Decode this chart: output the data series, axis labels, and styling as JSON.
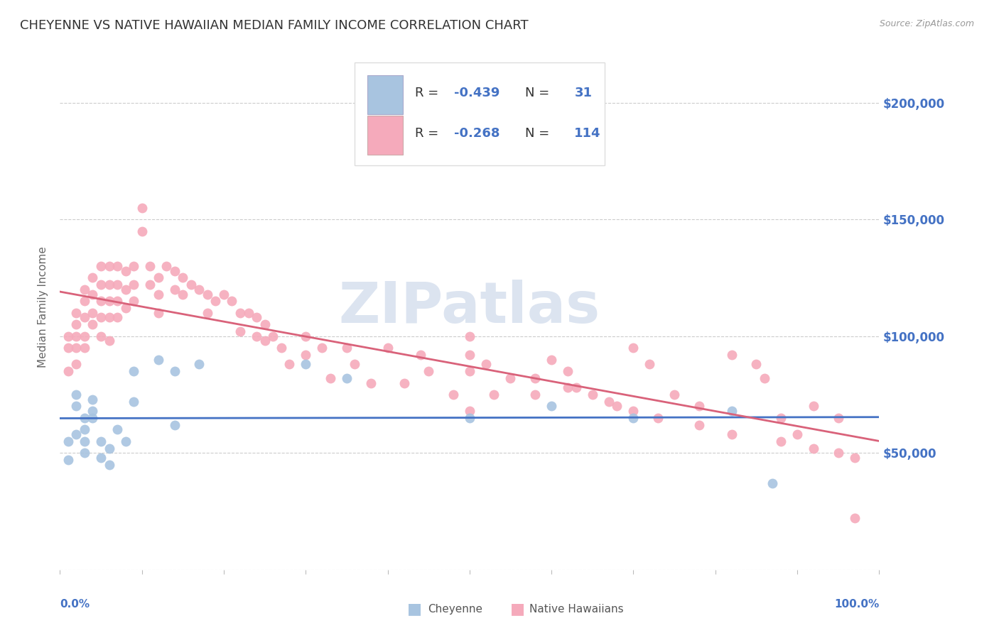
{
  "title": "CHEYENNE VS NATIVE HAWAIIAN MEDIAN FAMILY INCOME CORRELATION CHART",
  "source": "Source: ZipAtlas.com",
  "ylabel": "Median Family Income",
  "yticks": [
    0,
    50000,
    100000,
    150000,
    200000
  ],
  "ytick_labels": [
    "",
    "$50,000",
    "$100,000",
    "$150,000",
    "$200,000"
  ],
  "ylim": [
    0,
    225000
  ],
  "xlim": [
    0.0,
    1.0
  ],
  "watermark": "ZIPatlas",
  "cheyenne_color": "#a8c4e0",
  "cheyenne_line_color": "#4472c4",
  "hawaiian_color": "#f5aabb",
  "hawaiian_line_color": "#d9627a",
  "cheyenne_R": -0.439,
  "cheyenne_N": 31,
  "hawaiian_R": -0.268,
  "hawaiian_N": 114,
  "cheyenne_x": [
    0.01,
    0.01,
    0.02,
    0.02,
    0.02,
    0.03,
    0.03,
    0.03,
    0.03,
    0.04,
    0.04,
    0.04,
    0.05,
    0.05,
    0.06,
    0.06,
    0.07,
    0.08,
    0.09,
    0.09,
    0.12,
    0.14,
    0.14,
    0.17,
    0.3,
    0.35,
    0.5,
    0.6,
    0.7,
    0.82,
    0.87
  ],
  "cheyenne_y": [
    47000,
    55000,
    75000,
    70000,
    58000,
    65000,
    60000,
    55000,
    50000,
    68000,
    73000,
    65000,
    55000,
    48000,
    45000,
    52000,
    60000,
    55000,
    85000,
    72000,
    90000,
    85000,
    62000,
    88000,
    88000,
    82000,
    65000,
    70000,
    65000,
    68000,
    37000
  ],
  "hawaiian_x": [
    0.01,
    0.01,
    0.01,
    0.02,
    0.02,
    0.02,
    0.02,
    0.02,
    0.03,
    0.03,
    0.03,
    0.03,
    0.03,
    0.04,
    0.04,
    0.04,
    0.04,
    0.05,
    0.05,
    0.05,
    0.05,
    0.05,
    0.06,
    0.06,
    0.06,
    0.06,
    0.06,
    0.07,
    0.07,
    0.07,
    0.07,
    0.08,
    0.08,
    0.08,
    0.09,
    0.09,
    0.09,
    0.1,
    0.1,
    0.11,
    0.11,
    0.12,
    0.12,
    0.12,
    0.13,
    0.14,
    0.14,
    0.15,
    0.15,
    0.16,
    0.17,
    0.18,
    0.18,
    0.19,
    0.2,
    0.21,
    0.22,
    0.22,
    0.23,
    0.24,
    0.24,
    0.25,
    0.25,
    0.26,
    0.27,
    0.28,
    0.3,
    0.3,
    0.32,
    0.33,
    0.35,
    0.36,
    0.38,
    0.4,
    0.42,
    0.44,
    0.45,
    0.48,
    0.5,
    0.5,
    0.53,
    0.55,
    0.58,
    0.6,
    0.62,
    0.63,
    0.65,
    0.68,
    0.7,
    0.72,
    0.75,
    0.78,
    0.82,
    0.85,
    0.86,
    0.88,
    0.9,
    0.92,
    0.95,
    0.97,
    0.5,
    0.5,
    0.52,
    0.58,
    0.62,
    0.67,
    0.7,
    0.73,
    0.78,
    0.82,
    0.88,
    0.92,
    0.95,
    0.97
  ],
  "hawaiian_y": [
    95000,
    85000,
    100000,
    110000,
    105000,
    95000,
    88000,
    100000,
    120000,
    115000,
    108000,
    100000,
    95000,
    125000,
    118000,
    110000,
    105000,
    130000,
    122000,
    115000,
    108000,
    100000,
    130000,
    122000,
    115000,
    108000,
    98000,
    130000,
    122000,
    115000,
    108000,
    128000,
    120000,
    112000,
    130000,
    122000,
    115000,
    155000,
    145000,
    130000,
    122000,
    125000,
    118000,
    110000,
    130000,
    128000,
    120000,
    125000,
    118000,
    122000,
    120000,
    118000,
    110000,
    115000,
    118000,
    115000,
    110000,
    102000,
    110000,
    108000,
    100000,
    105000,
    98000,
    100000,
    95000,
    88000,
    100000,
    92000,
    95000,
    82000,
    95000,
    88000,
    80000,
    95000,
    80000,
    92000,
    85000,
    75000,
    85000,
    68000,
    75000,
    82000,
    75000,
    90000,
    85000,
    78000,
    75000,
    70000,
    95000,
    88000,
    75000,
    70000,
    92000,
    88000,
    82000,
    65000,
    58000,
    70000,
    65000,
    22000,
    100000,
    92000,
    88000,
    82000,
    78000,
    72000,
    68000,
    65000,
    62000,
    58000,
    55000,
    52000,
    50000,
    48000
  ],
  "background_color": "#ffffff",
  "grid_color": "#cccccc",
  "title_color": "#333333",
  "tick_color": "#4472c4",
  "watermark_color": "#dce4f0",
  "title_fontsize": 13,
  "axis_fontsize": 11,
  "tick_fontsize": 11,
  "scatter_size": 100
}
